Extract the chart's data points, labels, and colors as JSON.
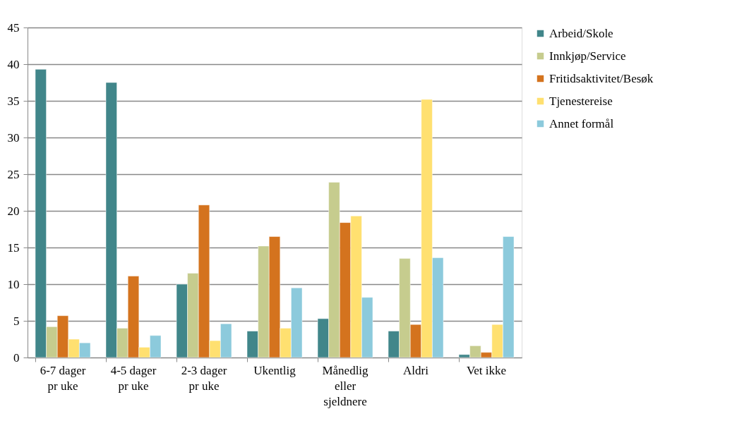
{
  "chart_data": {
    "type": "bar",
    "categories": [
      "6-7 dager pr uke",
      "4-5 dager pr uke",
      "2-3 dager pr uke",
      "Ukentlig",
      "Månedlig eller sjeldnere",
      "Aldri",
      "Vet ikke"
    ],
    "series": [
      {
        "name": "Arbeid/Skole",
        "color": "#41868a",
        "values": [
          39.3,
          37.5,
          10.0,
          3.6,
          5.3,
          3.6,
          0.4
        ]
      },
      {
        "name": "Innkjøp/Service",
        "color": "#c6cc8e",
        "values": [
          4.2,
          4.0,
          11.5,
          15.2,
          23.9,
          13.5,
          1.6
        ]
      },
      {
        "name": "Fritidsaktivitet/Besøk",
        "color": "#d4731e",
        "values": [
          5.7,
          11.1,
          20.8,
          16.5,
          18.4,
          4.5,
          0.7
        ]
      },
      {
        "name": "Tjenestereise",
        "color": "#ffe070",
        "values": [
          2.5,
          1.4,
          2.3,
          4.0,
          19.3,
          35.2,
          4.5
        ]
      },
      {
        "name": "Annet formål",
        "color": "#8ccadc",
        "values": [
          2.0,
          3.0,
          4.6,
          9.5,
          8.2,
          13.6,
          16.5
        ]
      }
    ],
    "ylim": [
      0,
      45
    ],
    "yticks": [
      0,
      5,
      10,
      15,
      20,
      25,
      30,
      35,
      40,
      45
    ],
    "grid": "y",
    "legend": "right"
  }
}
